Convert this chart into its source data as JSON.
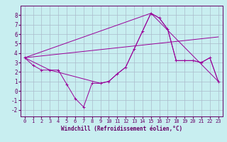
{
  "xlabel": "Windchill (Refroidissement éolien,°C)",
  "background_color": "#c8eef0",
  "grid_color": "#aabbcc",
  "line_color": "#990099",
  "spine_color": "#660066",
  "x_ticks": [
    0,
    1,
    2,
    3,
    4,
    5,
    6,
    7,
    8,
    9,
    10,
    11,
    12,
    13,
    14,
    15,
    16,
    17,
    18,
    19,
    20,
    21,
    22,
    23
  ],
  "y_ticks": [
    -2,
    -1,
    0,
    1,
    2,
    3,
    4,
    5,
    6,
    7,
    8
  ],
  "ylim": [
    -2.7,
    9.0
  ],
  "xlim": [
    -0.5,
    23.5
  ],
  "series": [
    {
      "x": [
        0,
        1,
        2,
        3,
        4,
        5,
        6,
        7,
        8,
        9,
        10,
        11,
        12,
        13,
        14,
        15,
        16,
        17,
        18,
        19,
        20,
        21,
        22,
        23
      ],
      "y": [
        3.5,
        2.7,
        2.2,
        2.2,
        2.2,
        0.7,
        -0.8,
        -1.7,
        0.8,
        0.8,
        1.0,
        1.8,
        2.5,
        4.4,
        6.3,
        8.2,
        7.7,
        6.5,
        3.2,
        3.2,
        3.2,
        3.0,
        3.5,
        1.0
      ],
      "marker": "+"
    },
    {
      "x": [
        0,
        23
      ],
      "y": [
        3.5,
        5.7
      ],
      "marker": null
    },
    {
      "x": [
        0,
        15,
        23
      ],
      "y": [
        3.5,
        8.2,
        1.0
      ],
      "marker": null
    },
    {
      "x": [
        0,
        3,
        9,
        10,
        11,
        12,
        13,
        14,
        15,
        16,
        17,
        18,
        19,
        20,
        21,
        22,
        23
      ],
      "y": [
        3.5,
        2.2,
        0.8,
        1.0,
        1.8,
        2.5,
        4.4,
        6.3,
        8.2,
        7.7,
        6.5,
        3.2,
        3.2,
        3.2,
        3.0,
        3.5,
        1.0
      ],
      "marker": null
    }
  ]
}
